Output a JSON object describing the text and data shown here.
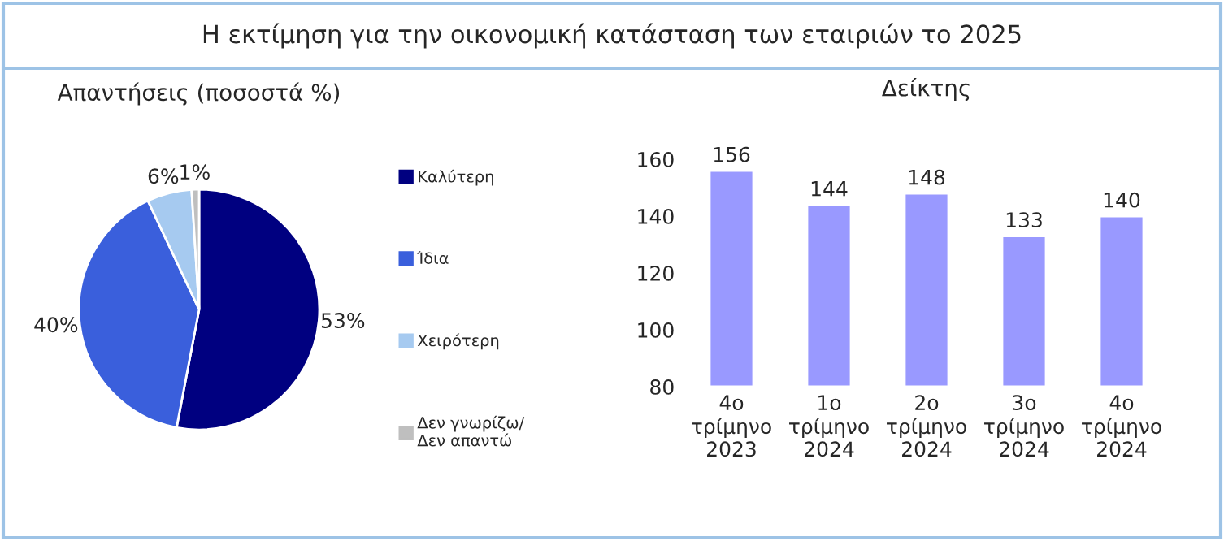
{
  "chart_data": [
    {
      "type": "pie",
      "title": "Απαντήσεις (ποσοστά %)",
      "annotations": [
        "Η εκτίμηση για την οικονομική κατάσταση των εταιριών το 2025"
      ],
      "categories": [
        "Καλύτερη",
        "Ίδια",
        "Χειρότερη",
        "Δεν γνωρίζω/\nΔεν απαντώ"
      ],
      "values": [
        53,
        40,
        6,
        1
      ],
      "colors": [
        "#000080",
        "#3a5fdc",
        "#a6caf0",
        "#bfbfbf"
      ],
      "value_labels": [
        "53%",
        "40%",
        "6%",
        "1%"
      ],
      "legend": "right"
    },
    {
      "type": "bar",
      "title": "Δείκτης",
      "categories": [
        "4ο\nτρίμηνο\n2023",
        "1ο\nτρίμηνο\n2024",
        "2ο\nτρίμηνο\n2024",
        "3ο\nτρίμηνο\n2024",
        "4ο\nτρίμηνο\n2024"
      ],
      "values": [
        156,
        144,
        148,
        133,
        140
      ],
      "color": "#9999ff",
      "ylim": [
        80,
        160
      ],
      "yticks": [
        80,
        100,
        120,
        140,
        160
      ],
      "data_labels": true,
      "grid": false,
      "legend": false
    }
  ]
}
